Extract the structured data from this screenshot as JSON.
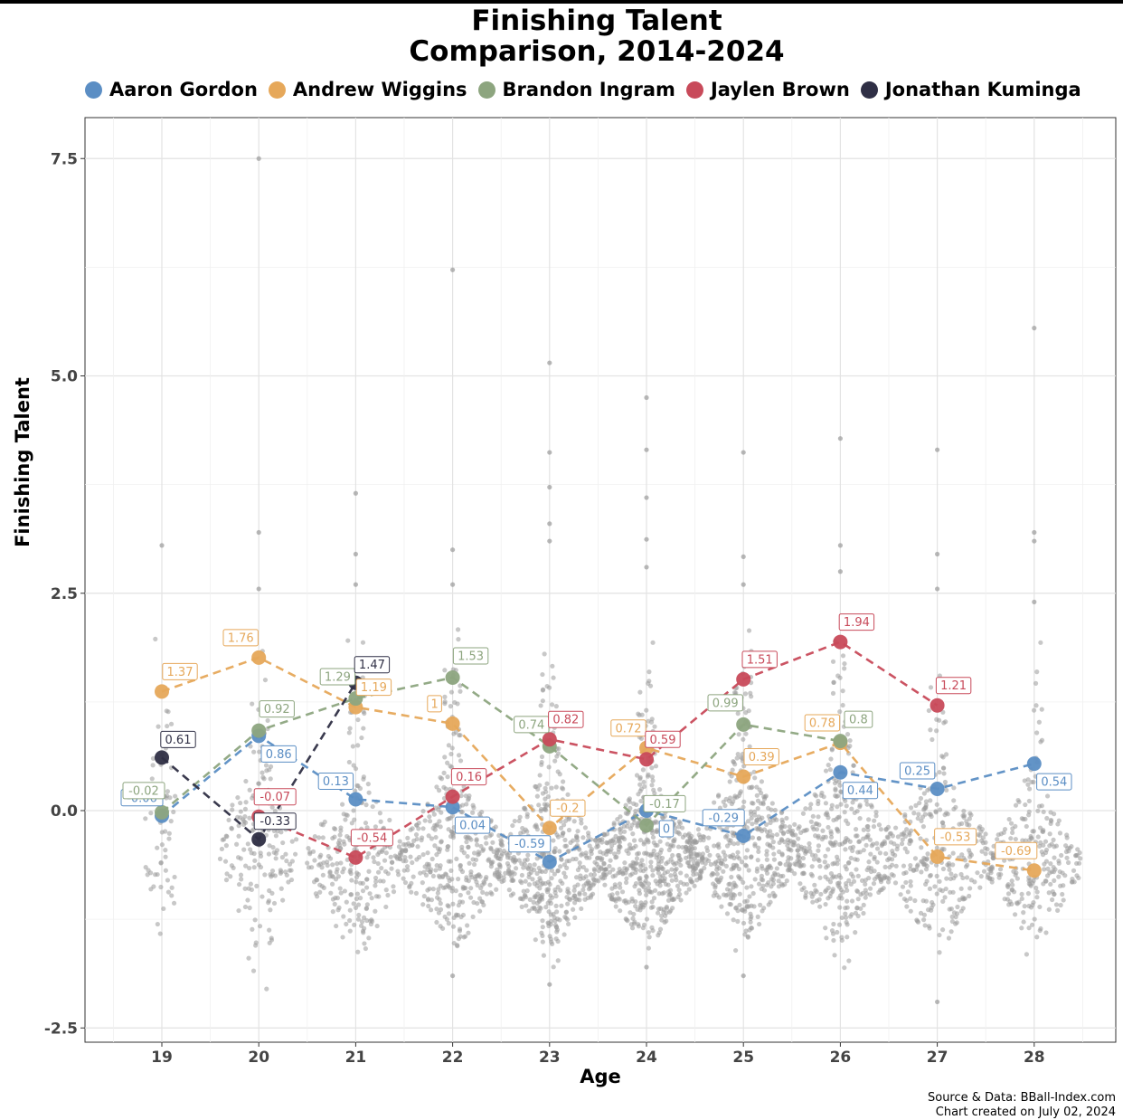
{
  "title_line1": "Finishing Talent",
  "title_line2": "Comparison, 2014-2024",
  "caption_line1": "Source & Data: BBall-Index.com",
  "caption_line2": "Chart created on July 02, 2024",
  "chart_data": {
    "type": "scatter",
    "xlabel": "Age",
    "ylabel": "Finishing Talent",
    "x_categories": [
      "19",
      "20",
      "21",
      "22",
      "23",
      "24",
      "25",
      "26",
      "27",
      "28"
    ],
    "y_ticks": [
      "-2.5",
      "0.0",
      "2.5",
      "5.0",
      "7.5"
    ],
    "ylim": [
      -2.6,
      8.0
    ],
    "grid": true,
    "legend_position": "top",
    "background_points_color": "#9a9a9a",
    "series": [
      {
        "name": "Aaron Gordon",
        "color": "#5b8ec4",
        "ages": [
          19,
          20,
          21,
          22,
          23,
          24,
          25,
          26,
          27,
          28
        ],
        "values": [
          -0.06,
          0.86,
          0.13,
          0.04,
          -0.59,
          0,
          -0.29,
          0.44,
          0.25,
          0.54
        ],
        "labels": [
          "-0.06",
          "0.86",
          "0.13",
          "0.04",
          "-0.59",
          "0",
          "-0.29",
          "0.44",
          "0.25",
          "0.54"
        ]
      },
      {
        "name": "Andrew Wiggins",
        "color": "#e6a85a",
        "ages": [
          19,
          20,
          21,
          22,
          23,
          24,
          25,
          26,
          27,
          28
        ],
        "values": [
          1.37,
          1.76,
          1.19,
          1,
          -0.2,
          0.72,
          0.39,
          0.78,
          -0.53,
          -0.69
        ],
        "labels": [
          "1.37",
          "1.76",
          "1.19",
          "1",
          "-0.2",
          "0.72",
          "0.39",
          "0.78",
          "-0.53",
          "-0.69"
        ]
      },
      {
        "name": "Brandon Ingram",
        "color": "#8da57f",
        "ages": [
          19,
          20,
          21,
          22,
          23,
          24,
          25,
          26
        ],
        "values": [
          -0.02,
          0.92,
          1.29,
          1.53,
          0.74,
          -0.17,
          0.99,
          0.8
        ],
        "labels": [
          "-0.02",
          "0.92",
          "1.29",
          "1.53",
          "0.74",
          "-0.17",
          "0.99",
          "0.8"
        ]
      },
      {
        "name": "Jaylen Brown",
        "color": "#c84a5a",
        "ages": [
          20,
          21,
          22,
          23,
          24,
          25,
          26,
          27
        ],
        "values": [
          -0.07,
          -0.54,
          0.16,
          0.82,
          0.59,
          1.51,
          1.94,
          1.21
        ],
        "labels": [
          "-0.07",
          "-0.54",
          "0.16",
          "0.82",
          "0.59",
          "1.51",
          "1.94",
          "1.21"
        ]
      },
      {
        "name": "Jonathan Kuminga",
        "color": "#2f2f45",
        "ages": [
          19,
          20,
          21
        ],
        "values": [
          0.61,
          -0.33,
          1.47
        ],
        "labels": [
          "0.61",
          "-0.33",
          "1.47"
        ]
      }
    ],
    "background_distribution": {
      "description_ages": [
        "19",
        "20",
        "21",
        "22",
        "23",
        "24",
        "25",
        "26",
        "27",
        "28"
      ],
      "approx_counts": [
        60,
        180,
        260,
        380,
        460,
        520,
        460,
        380,
        300,
        240
      ],
      "median": [
        -0.3,
        -0.5,
        -0.6,
        -0.55,
        -0.6,
        -0.6,
        -0.45,
        -0.5,
        -0.55,
        -0.6
      ],
      "spread": [
        0.7,
        0.7,
        0.6,
        0.55,
        0.55,
        0.5,
        0.55,
        0.6,
        0.55,
        0.5
      ],
      "outliers": [
        [
          19,
          3.05
        ],
        [
          20,
          7.5
        ],
        [
          20,
          3.2
        ],
        [
          20,
          2.55
        ],
        [
          21,
          3.65
        ],
        [
          21,
          2.95
        ],
        [
          21,
          2.6
        ],
        [
          22,
          6.22
        ],
        [
          22,
          3.0
        ],
        [
          22,
          2.6
        ],
        [
          23,
          5.15
        ],
        [
          23,
          4.12
        ],
        [
          23,
          3.72
        ],
        [
          23,
          3.3
        ],
        [
          23,
          3.1
        ],
        [
          24,
          4.75
        ],
        [
          24,
          4.15
        ],
        [
          24,
          3.6
        ],
        [
          24,
          3.12
        ],
        [
          24,
          2.8
        ],
        [
          25,
          4.12
        ],
        [
          25,
          2.92
        ],
        [
          25,
          2.6
        ],
        [
          26,
          4.28
        ],
        [
          26,
          3.05
        ],
        [
          26,
          2.75
        ],
        [
          27,
          4.15
        ],
        [
          27,
          2.95
        ],
        [
          27,
          2.55
        ],
        [
          27,
          -2.2
        ],
        [
          28,
          5.55
        ],
        [
          28,
          3.2
        ],
        [
          28,
          3.1
        ],
        [
          28,
          2.4
        ],
        [
          23,
          -2.0
        ],
        [
          22,
          -1.9
        ],
        [
          25,
          -1.9
        ],
        [
          24,
          -1.8
        ]
      ]
    }
  }
}
